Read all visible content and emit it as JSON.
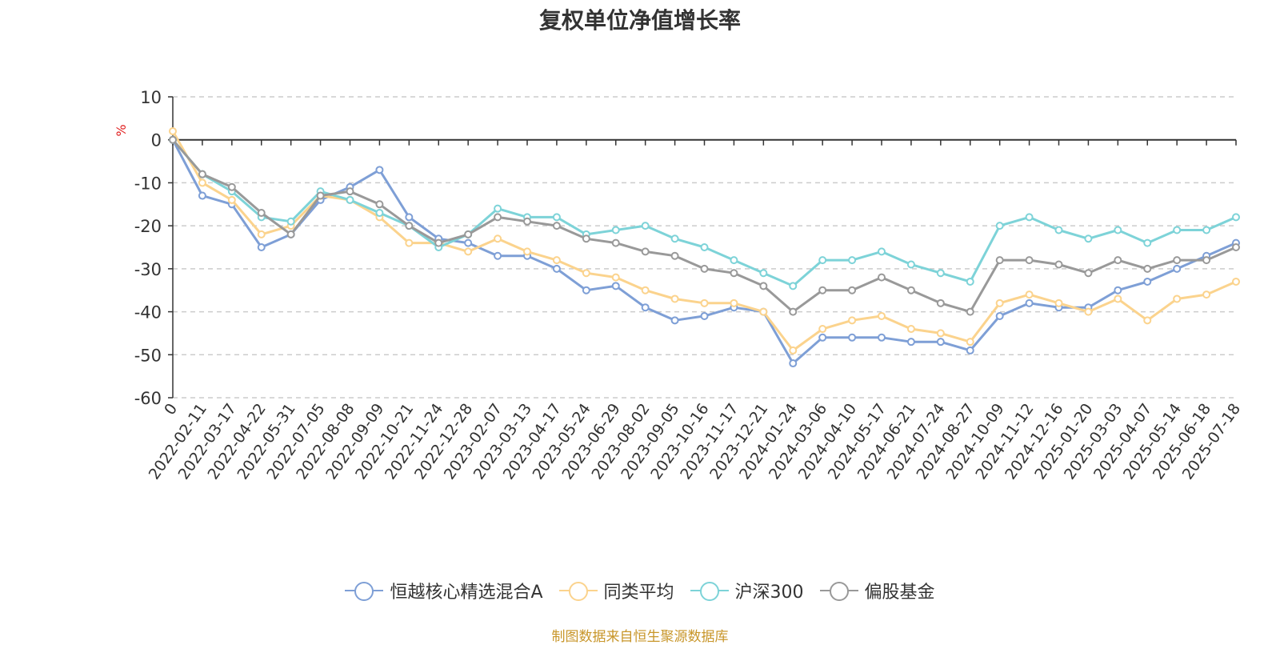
{
  "chart_data": {
    "type": "line",
    "title": "复权单位净值增长率",
    "ylabel": "%",
    "ylim": [
      -60,
      10
    ],
    "yticks": [
      10,
      0,
      -10,
      -20,
      -30,
      -40,
      -50,
      -60
    ],
    "grid": true,
    "legend_position": "bottom",
    "source_note": "制图数据来自恒生聚源数据库",
    "categories": [
      "0",
      "2022-02-11",
      "2022-03-17",
      "2022-04-22",
      "2022-05-31",
      "2022-07-05",
      "2022-08-08",
      "2022-09-09",
      "2022-10-21",
      "2022-11-24",
      "2022-12-28",
      "2023-02-07",
      "2023-03-13",
      "2023-04-17",
      "2023-05-24",
      "2023-06-29",
      "2023-08-02",
      "2023-09-05",
      "2023-10-16",
      "2023-11-17",
      "2023-12-21",
      "2024-01-24",
      "2024-03-06",
      "2024-04-10",
      "2024-05-17",
      "2024-06-21",
      "2024-07-24",
      "2024-08-27",
      "2024-10-09",
      "2024-11-12",
      "2024-12-16",
      "2025-01-20",
      "2025-03-03",
      "2025-04-07",
      "2025-05-14",
      "2025-06-18",
      "2025-07-18"
    ],
    "series": [
      {
        "name": "恒越核心精选混合A",
        "color": "#7e9fd6",
        "values": [
          0,
          -13,
          -15,
          -25,
          -22,
          -14,
          -11,
          -7,
          -18,
          -23,
          -24,
          -27,
          -27,
          -30,
          -35,
          -34,
          -39,
          -42,
          -41,
          -39,
          -40,
          -52,
          -46,
          -46,
          -46,
          -47,
          -47,
          -49,
          -41,
          -38,
          -39,
          -39,
          -35,
          -33,
          -30,
          -27,
          -24
        ]
      },
      {
        "name": "同类平均",
        "color": "#fbd38d",
        "values": [
          2,
          -10,
          -14,
          -22,
          -20,
          -13,
          -14,
          -18,
          -24,
          -24,
          -26,
          -23,
          -26,
          -28,
          -31,
          -32,
          -35,
          -37,
          -38,
          -38,
          -40,
          -49,
          -44,
          -42,
          -41,
          -44,
          -45,
          -47,
          -38,
          -36,
          -38,
          -40,
          -37,
          -42,
          -37,
          -36,
          -33
        ]
      },
      {
        "name": "沪深300",
        "color": "#7dd3d8",
        "values": [
          0,
          -8,
          -12,
          -18,
          -19,
          -12,
          -14,
          -17,
          -20,
          -25,
          -22,
          -16,
          -18,
          -18,
          -22,
          -21,
          -20,
          -23,
          -25,
          -28,
          -31,
          -34,
          -28,
          -28,
          -26,
          -29,
          -31,
          -33,
          -20,
          -18,
          -21,
          -23,
          -21,
          -24,
          -21,
          -21,
          -18
        ]
      },
      {
        "name": "偏股基金",
        "color": "#999999",
        "values": [
          0,
          -8,
          -11,
          -17,
          -22,
          -13,
          -12,
          -15,
          -20,
          -24,
          -22,
          -18,
          -19,
          -20,
          -23,
          -24,
          -26,
          -27,
          -30,
          -31,
          -34,
          -40,
          -35,
          -35,
          -32,
          -35,
          -38,
          -40,
          -28,
          -28,
          -29,
          -31,
          -28,
          -30,
          -28,
          -28,
          -25
        ]
      }
    ]
  }
}
